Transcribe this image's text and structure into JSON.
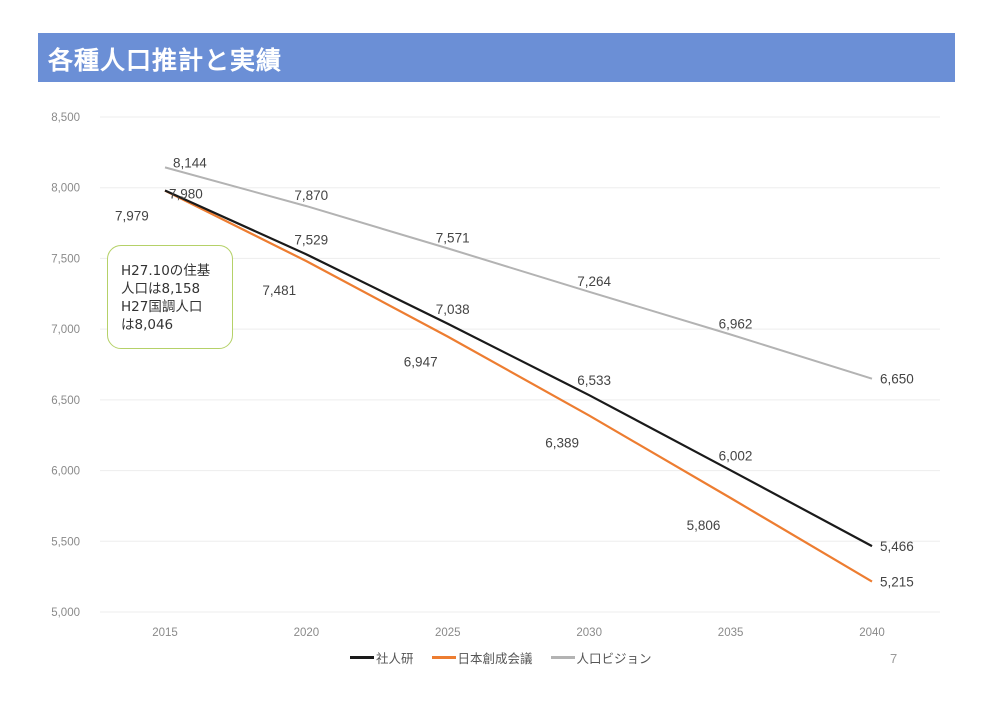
{
  "header": {
    "title": "各種人口推計と実績"
  },
  "annotation": {
    "lines": [
      "H27.10の住基",
      "人口は8,158",
      "H27国調人口",
      "は8,046"
    ]
  },
  "page_number": "7",
  "chart_data": {
    "type": "line",
    "title": "各種人口推計と実績",
    "xlabel": "",
    "ylabel": "",
    "x": [
      "2015",
      "2020",
      "2025",
      "2030",
      "2035",
      "2040"
    ],
    "ylim": [
      5000,
      8500
    ],
    "yticks": [
      5000,
      5500,
      6000,
      6500,
      7000,
      7500,
      8000,
      8500
    ],
    "ytick_labels": [
      "5,000",
      "5,500",
      "6,000",
      "6,500",
      "7,000",
      "7,500",
      "8,000",
      "8,500"
    ],
    "grid": true,
    "legend_position": "bottom",
    "series": [
      {
        "name": "社人研",
        "color": "#1a1a1a",
        "values": [
          7980,
          7529,
          7038,
          6533,
          6002,
          5466
        ],
        "labels": [
          "7,980",
          "7,529",
          "7,038",
          "6,533",
          "6,002",
          "5,466"
        ]
      },
      {
        "name": "日本創成会議",
        "color": "#ed7d31",
        "values": [
          7979,
          7481,
          6947,
          6389,
          5806,
          5215
        ],
        "labels": [
          "7,979",
          "7,481",
          "6,947",
          "6,389",
          "5,806",
          "5,215"
        ]
      },
      {
        "name": "人口ビジョン",
        "color": "#b3b3b3",
        "values": [
          8144,
          7870,
          7571,
          7264,
          6962,
          6650
        ],
        "labels": [
          "8,144",
          "7,870",
          "7,571",
          "7,264",
          "6,962",
          "6,650"
        ]
      }
    ]
  }
}
